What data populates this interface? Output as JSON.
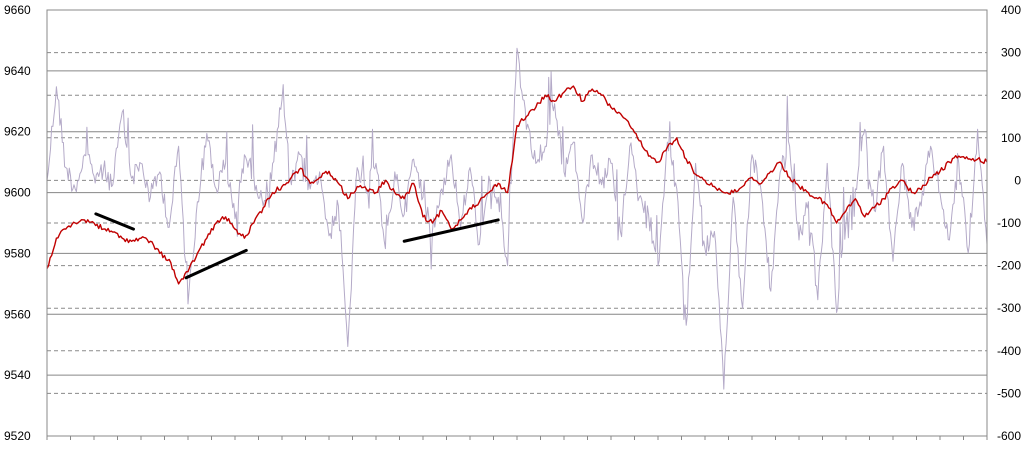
{
  "chart_data": {
    "type": "line",
    "title": "",
    "xlabel": "",
    "ylabel": "",
    "grid": true,
    "legend": "none",
    "y_left": {
      "min": 9520,
      "max": 9660,
      "ticks": [
        9660,
        9640,
        9620,
        9600,
        9580,
        9560,
        9540,
        9520
      ]
    },
    "y_right": {
      "min": -600,
      "max": 400,
      "ticks": [
        400,
        300,
        200,
        100,
        0,
        -100,
        -200,
        -300,
        -400,
        -500,
        -600
      ]
    },
    "x": {
      "min": 0,
      "max": 100,
      "tick_count": 41
    },
    "series": [
      {
        "axis": "left",
        "color": "#c00000",
        "x": [
          0,
          1,
          2,
          3,
          4,
          5,
          6,
          7,
          8,
          9,
          10,
          11,
          12,
          13,
          14,
          15,
          16,
          17,
          18,
          19,
          20,
          21,
          22,
          23,
          24,
          25,
          26,
          27,
          28,
          29,
          30,
          31,
          32,
          33,
          34,
          35,
          36,
          37,
          38,
          39,
          40,
          41,
          42,
          43,
          44,
          45,
          46,
          47,
          48,
          49,
          50,
          51,
          52,
          53,
          54,
          55,
          56,
          57,
          58,
          59,
          60,
          61,
          62,
          63,
          64,
          65,
          66,
          67,
          68,
          69,
          70,
          71,
          72,
          73,
          74,
          75,
          76,
          77,
          78,
          79,
          80,
          81,
          82,
          83,
          84,
          85,
          86,
          87,
          88,
          89,
          90,
          91,
          92,
          93,
          94,
          95,
          96,
          97,
          98,
          99,
          100
        ],
        "values": [
          9575,
          9585,
          9588,
          9590,
          9591,
          9590,
          9588,
          9587,
          9585,
          9584,
          9585,
          9584,
          9580,
          9578,
          9570,
          9574,
          9580,
          9585,
          9590,
          9592,
          9588,
          9585,
          9590,
          9595,
          9600,
          9602,
          9605,
          9608,
          9603,
          9605,
          9607,
          9603,
          9598,
          9602,
          9601,
          9600,
          9604,
          9600,
          9598,
          9603,
          9592,
          9590,
          9594,
          9588,
          9591,
          9595,
          9597,
          9600,
          9603,
          9600,
          9622,
          9625,
          9628,
          9632,
          9630,
          9633,
          9635,
          9630,
          9634,
          9632,
          9628,
          9626,
          9622,
          9617,
          9612,
          9610,
          9615,
          9618,
          9611,
          9606,
          9604,
          9602,
          9600,
          9600,
          9602,
          9605,
          9603,
          9607,
          9610,
          9605,
          9602,
          9600,
          9598,
          9596,
          9590,
          9594,
          9598,
          9592,
          9595,
          9598,
          9602,
          9604,
          9600,
          9601,
          9605,
          9607,
          9610,
          9612,
          9611,
          9611,
          9610
        ]
      },
      {
        "axis": "right",
        "color": "#b4aac8",
        "x": [
          0,
          1,
          2,
          3,
          4,
          5,
          6,
          7,
          8,
          9,
          10,
          11,
          12,
          13,
          14,
          15,
          16,
          17,
          18,
          19,
          20,
          21,
          22,
          23,
          24,
          25,
          26,
          27,
          28,
          29,
          30,
          31,
          32,
          33,
          34,
          35,
          36,
          37,
          38,
          39,
          40,
          41,
          42,
          43,
          44,
          45,
          46,
          47,
          48,
          49,
          50,
          51,
          52,
          53,
          54,
          55,
          56,
          57,
          58,
          59,
          60,
          61,
          62,
          63,
          64,
          65,
          66,
          67,
          68,
          69,
          70,
          71,
          72,
          73,
          74,
          75,
          76,
          77,
          78,
          79,
          80,
          81,
          82,
          83,
          84,
          85,
          86,
          87,
          88,
          89,
          90,
          91,
          92,
          93,
          94,
          95,
          96,
          97,
          98,
          99,
          100
        ],
        "values": [
          0,
          220,
          30,
          -20,
          60,
          10,
          25,
          -10,
          160,
          5,
          40,
          -40,
          20,
          -110,
          80,
          -290,
          -50,
          110,
          -20,
          40,
          -90,
          60,
          10,
          -60,
          40,
          190,
          -10,
          60,
          -20,
          20,
          -130,
          -60,
          -390,
          30,
          -30,
          40,
          -160,
          20,
          -80,
          50,
          -40,
          -120,
          -20,
          60,
          -110,
          30,
          -150,
          10,
          -40,
          -200,
          310,
          120,
          40,
          80,
          180,
          20,
          90,
          -100,
          60,
          -10,
          40,
          -120,
          80,
          -40,
          -80,
          -200,
          90,
          -20,
          -340,
          40,
          -160,
          -120,
          -490,
          -40,
          -300,
          60,
          -30,
          -260,
          20,
          80,
          -140,
          -50,
          -280,
          40,
          -310,
          -100,
          -20,
          120,
          -70,
          80,
          -190,
          40,
          -110,
          -60,
          80,
          -30,
          -140,
          40,
          -170,
          120,
          -150
        ]
      }
    ],
    "annotations": [
      {
        "x1": 5.2,
        "y1": 9593,
        "x2": 9.2,
        "y2": 9588
      },
      {
        "x1": 14.8,
        "y1": 9572,
        "x2": 21.2,
        "y2": 9581
      },
      {
        "x1": 38.0,
        "y1": 9584,
        "x2": 48.0,
        "y2": 9591
      }
    ]
  }
}
